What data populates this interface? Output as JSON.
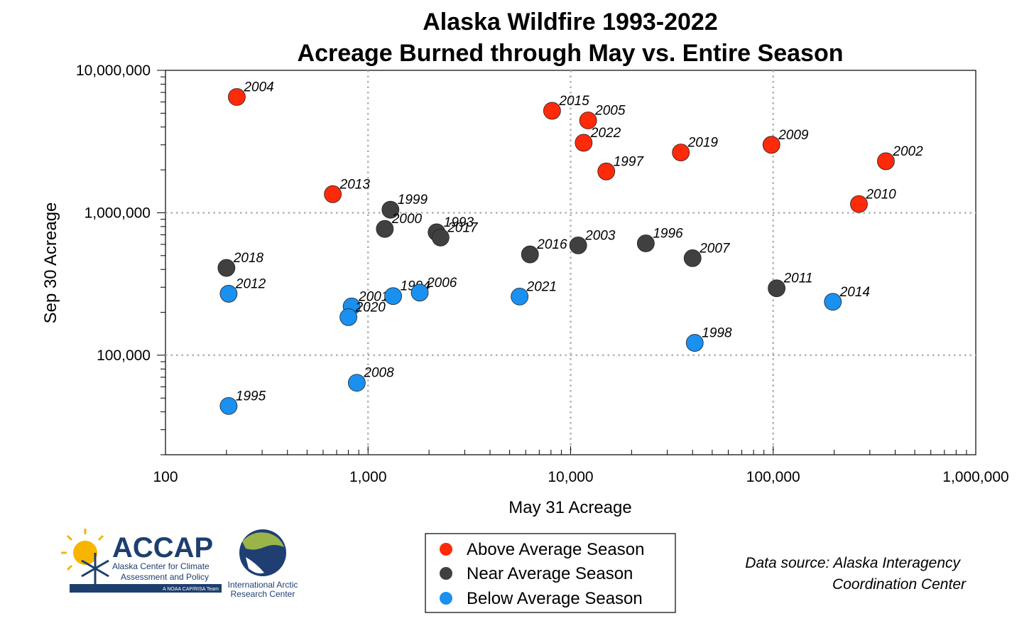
{
  "chart_data": {
    "type": "scatter",
    "title": [
      "Alaska Wildfire 1993-2022",
      "Acreage Burned through May vs. Entire Season"
    ],
    "xlabel": "May 31 Acreage",
    "ylabel": "Sep 30 Acreage",
    "x_scale": "log",
    "y_scale": "log",
    "xlim": [
      100,
      1000000
    ],
    "ylim": [
      20000,
      10000000
    ],
    "x_ticks": [
      {
        "value": 100,
        "label": "100"
      },
      {
        "value": 1000,
        "label": "1,000"
      },
      {
        "value": 10000,
        "label": "10,000"
      },
      {
        "value": 100000,
        "label": "100,000"
      },
      {
        "value": 1000000,
        "label": "1,000,000"
      }
    ],
    "y_ticks": [
      {
        "value": 100000,
        "label": "100,000"
      },
      {
        "value": 1000000,
        "label": "1,000,000"
      },
      {
        "value": 10000000,
        "label": "10,000,000"
      }
    ],
    "grid": "dotted at major ticks",
    "series": [
      {
        "name": "Above Average Season",
        "color": "#ff2a0a",
        "points": [
          {
            "label": "2004",
            "x": 225,
            "y": 6500000
          },
          {
            "label": "2013",
            "x": 670,
            "y": 1350000
          },
          {
            "label": "2015",
            "x": 8100,
            "y": 5200000
          },
          {
            "label": "2005",
            "x": 12200,
            "y": 4450000
          },
          {
            "label": "2022",
            "x": 11600,
            "y": 3100000
          },
          {
            "label": "1997",
            "x": 15000,
            "y": 1950000
          },
          {
            "label": "2019",
            "x": 35000,
            "y": 2650000
          },
          {
            "label": "2009",
            "x": 98000,
            "y": 3000000
          },
          {
            "label": "2002",
            "x": 360000,
            "y": 2300000
          },
          {
            "label": "2010",
            "x": 265000,
            "y": 1150000
          }
        ]
      },
      {
        "name": "Near Average Season",
        "color": "#404040",
        "points": [
          {
            "label": "1999",
            "x": 1290,
            "y": 1050000
          },
          {
            "label": "2000",
            "x": 1210,
            "y": 770000
          },
          {
            "label": "1993",
            "x": 2180,
            "y": 730000
          },
          {
            "label": "2017",
            "x": 2280,
            "y": 670000
          },
          {
            "label": "2016",
            "x": 6300,
            "y": 510000
          },
          {
            "label": "2003",
            "x": 10900,
            "y": 590000
          },
          {
            "label": "1996",
            "x": 23500,
            "y": 610000
          },
          {
            "label": "2007",
            "x": 40000,
            "y": 480000
          },
          {
            "label": "2018",
            "x": 200,
            "y": 410000
          },
          {
            "label": "2011",
            "x": 104000,
            "y": 295000
          }
        ]
      },
      {
        "name": "Below Average Season",
        "color": "#1a90f0",
        "points": [
          {
            "label": "2012",
            "x": 205,
            "y": 270000
          },
          {
            "label": "2001",
            "x": 830,
            "y": 220000
          },
          {
            "label": "2020",
            "x": 800,
            "y": 185000
          },
          {
            "label": "1994",
            "x": 1330,
            "y": 260000
          },
          {
            "label": "2006",
            "x": 1800,
            "y": 275000
          },
          {
            "label": "2021",
            "x": 5600,
            "y": 258000
          },
          {
            "label": "2014",
            "x": 197000,
            "y": 237000
          },
          {
            "label": "1998",
            "x": 41000,
            "y": 122000
          },
          {
            "label": "2008",
            "x": 880,
            "y": 64000
          },
          {
            "label": "1995",
            "x": 205,
            "y": 44000
          }
        ]
      }
    ],
    "legend": {
      "position": "bottom-center",
      "boxed": true
    }
  },
  "source": {
    "line1": "Data source: Alaska Interagency",
    "line2": "Coordination Center"
  },
  "logos": {
    "accap": {
      "name": "ACCAP",
      "line1": "Alaska Center for Climate",
      "line2": "Assessment and Policy",
      "tag": "A NOAA CAP/RISA Team"
    },
    "iarc": {
      "line1": "International Arctic",
      "line2": "Research Center"
    }
  }
}
